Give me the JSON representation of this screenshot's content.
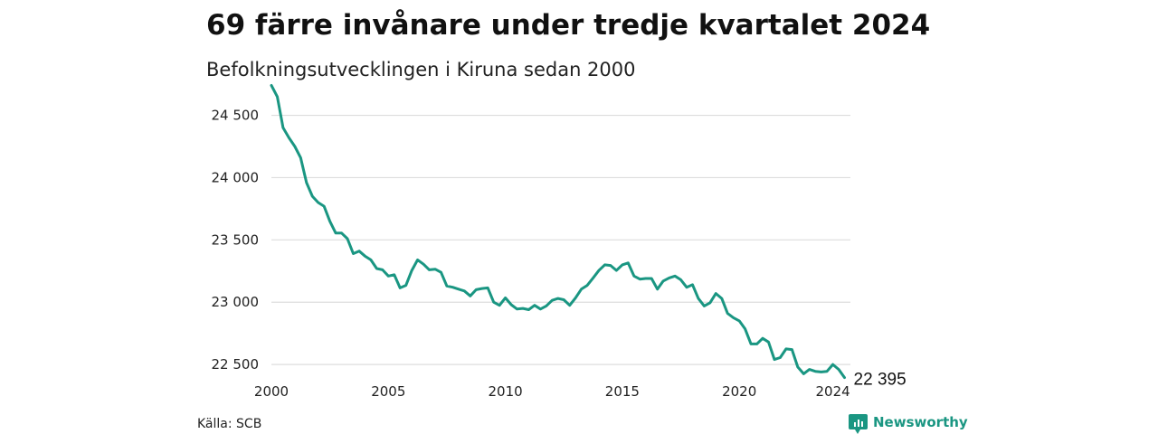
{
  "chart_data": {
    "type": "line",
    "title": "69 färre invånare under tredje kvartalet 2024",
    "subtitle": "Befolkningsutvecklingen i Kiruna sedan 2000",
    "xlabel": "",
    "ylabel": "",
    "xlim": [
      2000,
      2024.75
    ],
    "ylim": [
      22450,
      24700
    ],
    "yticks": [
      22500,
      23000,
      23500,
      24000,
      24500
    ],
    "ytick_labels": [
      "22 500",
      "23 000",
      "23 500",
      "24 000",
      "24 500"
    ],
    "xticks": [
      2000,
      2005,
      2010,
      2015,
      2020,
      2024
    ],
    "xtick_labels": [
      "2000",
      "2005",
      "2010",
      "2015",
      "2020",
      "2024"
    ],
    "grid": "horizontal",
    "series": [
      {
        "color": "#1a9682",
        "end_label": "22 395",
        "x": [
          2000.0,
          2000.25,
          2000.5,
          2000.75,
          2001.0,
          2001.25,
          2001.5,
          2001.75,
          2002.0,
          2002.25,
          2002.5,
          2002.75,
          2003.0,
          2003.25,
          2003.5,
          2003.75,
          2004.0,
          2004.25,
          2004.5,
          2004.75,
          2005.0,
          2005.25,
          2005.5,
          2005.75,
          2006.0,
          2006.25,
          2006.5,
          2006.75,
          2007.0,
          2007.25,
          2007.5,
          2007.75,
          2008.0,
          2008.25,
          2008.5,
          2008.75,
          2009.0,
          2009.25,
          2009.5,
          2009.75,
          2010.0,
          2010.25,
          2010.5,
          2010.75,
          2011.0,
          2011.25,
          2011.5,
          2011.75,
          2012.0,
          2012.25,
          2012.5,
          2012.75,
          2013.0,
          2013.25,
          2013.5,
          2013.75,
          2014.0,
          2014.25,
          2014.5,
          2014.75,
          2015.0,
          2015.25,
          2015.5,
          2015.75,
          2016.0,
          2016.25,
          2016.5,
          2016.75,
          2017.0,
          2017.25,
          2017.5,
          2017.75,
          2018.0,
          2018.25,
          2018.5,
          2018.75,
          2019.0,
          2019.25,
          2019.5,
          2019.75,
          2020.0,
          2020.25,
          2020.5,
          2020.75,
          2021.0,
          2021.25,
          2021.5,
          2021.75,
          2022.0,
          2022.25,
          2022.5,
          2022.75,
          2023.0,
          2023.25,
          2023.5,
          2023.75,
          2024.0,
          2024.25,
          2024.5
        ],
        "values": [
          24740,
          24650,
          24400,
          24320,
          24250,
          24160,
          23960,
          23850,
          23800,
          23770,
          23650,
          23555,
          23555,
          23510,
          23390,
          23410,
          23370,
          23340,
          23270,
          23260,
          23210,
          23220,
          23115,
          23135,
          23255,
          23340,
          23305,
          23260,
          23265,
          23240,
          23130,
          23120,
          23105,
          23090,
          23050,
          23100,
          23110,
          23115,
          23000,
          22975,
          23035,
          22980,
          22945,
          22950,
          22940,
          22975,
          22945,
          22970,
          23015,
          23030,
          23020,
          22975,
          23035,
          23105,
          23135,
          23195,
          23255,
          23300,
          23295,
          23255,
          23300,
          23315,
          23210,
          23185,
          23190,
          23190,
          23105,
          23170,
          23195,
          23210,
          23180,
          23120,
          23140,
          23030,
          22970,
          22995,
          23070,
          23030,
          22910,
          22875,
          22850,
          22785,
          22665,
          22665,
          22710,
          22680,
          22540,
          22555,
          22625,
          22620,
          22480,
          22425,
          22460,
          22445,
          22440,
          22445,
          22500,
          22460,
          22395
        ]
      }
    ]
  },
  "footer": {
    "source": "Källa: SCB",
    "brand": "Newsworthy",
    "brand_color": "#1a9682",
    "brand_icon": "newsworthy-logo-icon"
  }
}
